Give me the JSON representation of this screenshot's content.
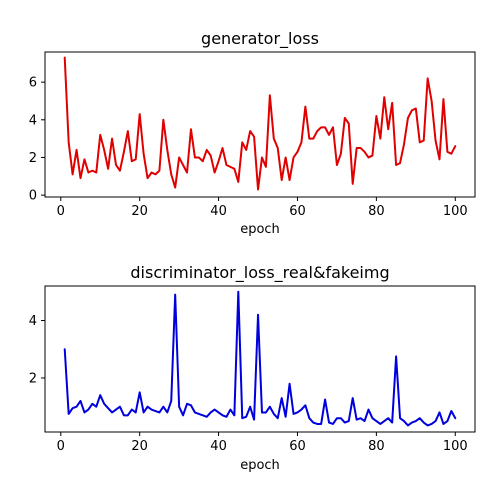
{
  "chart_data": [
    {
      "type": "line",
      "title": "generator_loss",
      "xlabel": "epoch",
      "ylabel": "",
      "xlim": [
        -4,
        105
      ],
      "ylim": [
        -0.1,
        7.6
      ],
      "xticks": [
        0,
        20,
        40,
        60,
        80,
        100
      ],
      "yticks": [
        0,
        2,
        4,
        6
      ],
      "grid": false,
      "color": "#e00000",
      "x_start": 1,
      "values": [
        7.3,
        2.8,
        1.1,
        2.4,
        0.9,
        1.9,
        1.2,
        1.3,
        1.2,
        3.2,
        2.4,
        1.4,
        3.0,
        1.6,
        1.3,
        2.3,
        3.4,
        1.8,
        1.9,
        4.3,
        2.2,
        0.9,
        1.2,
        1.1,
        1.3,
        4.0,
        2.4,
        1.1,
        0.4,
        2.0,
        1.6,
        1.2,
        3.5,
        2.0,
        2.0,
        1.8,
        2.4,
        2.1,
        1.2,
        1.8,
        2.5,
        1.6,
        1.5,
        1.4,
        0.7,
        2.8,
        2.4,
        3.4,
        3.1,
        0.3,
        2.0,
        1.5,
        5.3,
        3.0,
        2.5,
        0.8,
        2.0,
        0.8,
        2.0,
        2.3,
        2.8,
        4.7,
        3.0,
        3.0,
        3.4,
        3.6,
        3.6,
        3.2,
        3.6,
        1.6,
        2.2,
        4.1,
        3.8,
        0.6,
        2.5,
        2.5,
        2.3,
        2.0,
        2.1,
        4.2,
        3.0,
        5.2,
        3.5,
        4.9,
        1.6,
        1.7,
        2.7,
        4.1,
        4.5,
        4.6,
        2.8,
        2.9,
        6.2,
        5.0,
        2.9,
        1.9,
        5.1,
        2.3,
        2.2,
        2.6
      ]
    },
    {
      "type": "line",
      "title": "discriminator_loss_real&fakeimg",
      "xlabel": "epoch",
      "ylabel": "",
      "xlim": [
        -4,
        105
      ],
      "ylim": [
        0.12,
        5.2
      ],
      "xticks": [
        0,
        20,
        40,
        60,
        80,
        100
      ],
      "yticks": [
        2,
        4
      ],
      "grid": false,
      "color": "#0000dd",
      "x_start": 1,
      "values": [
        3.0,
        0.75,
        0.95,
        1.0,
        1.2,
        0.8,
        0.9,
        1.1,
        1.0,
        1.4,
        1.1,
        0.95,
        0.8,
        0.9,
        1.0,
        0.7,
        0.7,
        0.9,
        0.8,
        1.5,
        0.8,
        1.0,
        0.9,
        0.85,
        0.8,
        1.0,
        0.8,
        1.2,
        4.9,
        1.0,
        0.7,
        1.1,
        1.05,
        0.8,
        0.75,
        0.7,
        0.65,
        0.8,
        0.9,
        0.8,
        0.7,
        0.65,
        0.9,
        0.7,
        5.0,
        0.6,
        0.65,
        1.0,
        0.55,
        4.2,
        0.8,
        0.8,
        1.0,
        0.75,
        0.6,
        1.3,
        0.65,
        1.8,
        0.75,
        0.8,
        0.9,
        1.05,
        0.6,
        0.45,
        0.4,
        0.4,
        1.25,
        0.45,
        0.4,
        0.6,
        0.6,
        0.45,
        0.5,
        1.3,
        0.55,
        0.6,
        0.5,
        0.9,
        0.6,
        0.5,
        0.4,
        0.5,
        0.6,
        0.45,
        2.75,
        0.6,
        0.5,
        0.35,
        0.45,
        0.5,
        0.6,
        0.45,
        0.35,
        0.4,
        0.5,
        0.8,
        0.4,
        0.5,
        0.85,
        0.6
      ]
    }
  ]
}
